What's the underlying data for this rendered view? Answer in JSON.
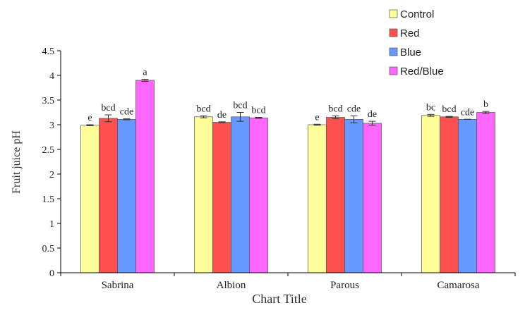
{
  "chart_data": {
    "type": "bar",
    "title": "",
    "xlabel": "Chart Title",
    "ylabel": "Fruit juice pH",
    "ylim": [
      0,
      4.5
    ],
    "yticks": [
      "0",
      "0.5",
      "1",
      "1.5",
      "2",
      "2.5",
      "3",
      "3.5",
      "4",
      "4.5"
    ],
    "grid": false,
    "legend_position": "top-right",
    "categories": [
      "Sabrina",
      "Albion",
      "Parous",
      "Camarosa"
    ],
    "series": [
      {
        "name": "Control",
        "color": "#ffff99",
        "values": [
          2.99,
          3.16,
          3.0,
          3.19
        ],
        "errors": [
          0.01,
          0.02,
          0.01,
          0.02
        ],
        "labels": [
          "e",
          "bcd",
          "e",
          "bc"
        ]
      },
      {
        "name": "Red",
        "color": "#ff5050",
        "values": [
          3.13,
          3.05,
          3.15,
          3.16
        ],
        "errors": [
          0.07,
          0.01,
          0.03,
          0.01
        ],
        "labels": [
          "bcd",
          "de",
          "bcd",
          "bcd"
        ]
      },
      {
        "name": "Blue",
        "color": "#6699ff",
        "values": [
          3.11,
          3.16,
          3.11,
          3.11
        ],
        "errors": [
          0.01,
          0.09,
          0.07,
          0.0
        ],
        "labels": [
          "cde",
          "bcd",
          "cde",
          "cde"
        ]
      },
      {
        "name": "Red/Blue",
        "color": "#ff66ff",
        "values": [
          3.9,
          3.14,
          3.03,
          3.25
        ],
        "errors": [
          0.02,
          0.01,
          0.04,
          0.02
        ],
        "labels": [
          "a",
          "bcd",
          "de",
          "b"
        ]
      }
    ]
  }
}
